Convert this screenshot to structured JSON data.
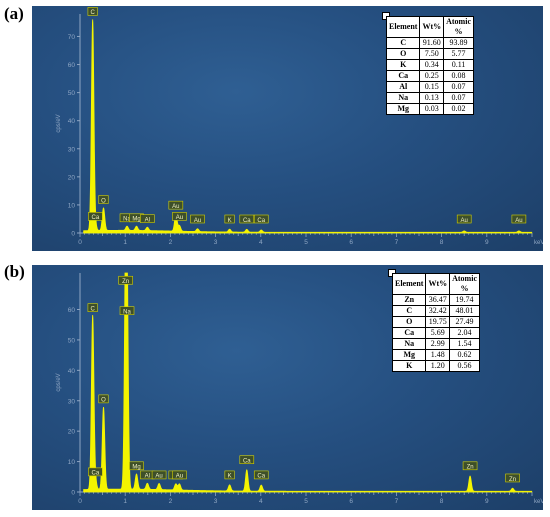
{
  "panel_labels": [
    "(a)",
    "(b)"
  ],
  "colors": {
    "spectrum": "#f4f400",
    "label_bg": "#3d4f2a",
    "label_border": "#d4d000",
    "axis": "#8fa6c3"
  },
  "chart_data": [
    {
      "type": "line",
      "panel": "(a)",
      "xlabel": "keV",
      "ylabel": "cps/eV",
      "xlim": [
        0,
        10
      ],
      "ylim": [
        0,
        78
      ],
      "x_ticks": [
        0,
        1,
        2,
        3,
        4,
        5,
        6,
        7,
        8,
        9
      ],
      "y_ticks": [
        0,
        10,
        20,
        30,
        40,
        50,
        60,
        70
      ],
      "peaks": [
        {
          "label": "C",
          "x": 0.28,
          "y": 75
        },
        {
          "label": "O",
          "x": 0.52,
          "y": 8
        },
        {
          "label": "Ca",
          "x": 0.34,
          "y": 2
        },
        {
          "label": "Na",
          "x": 1.04,
          "y": 1.5
        },
        {
          "label": "Mg",
          "x": 1.25,
          "y": 1.5
        },
        {
          "label": "Al",
          "x": 1.49,
          "y": 1.2
        },
        {
          "label": "Au",
          "x": 2.12,
          "y": 6
        },
        {
          "label": "Au",
          "x": 2.2,
          "y": 2
        },
        {
          "label": "Au",
          "x": 2.6,
          "y": 1
        },
        {
          "label": "K",
          "x": 3.31,
          "y": 1
        },
        {
          "label": "Ca",
          "x": 3.69,
          "y": 1
        },
        {
          "label": "Ca",
          "x": 4.01,
          "y": 0.8
        },
        {
          "label": "Au",
          "x": 8.5,
          "y": 0.5
        },
        {
          "label": "Au",
          "x": 9.71,
          "y": 0.5
        }
      ],
      "table": {
        "headers": [
          "Element",
          "Wt%",
          "Atomic %"
        ],
        "rows": [
          [
            "C",
            "91.60",
            "93.89"
          ],
          [
            "O",
            "7.50",
            "5.77"
          ],
          [
            "K",
            "0.34",
            "0.11"
          ],
          [
            "Ca",
            "0.25",
            "0.08"
          ],
          [
            "Al",
            "0.15",
            "0.07"
          ],
          [
            "Na",
            "0.13",
            "0.07"
          ],
          [
            "Mg",
            "0.03",
            "0.02"
          ]
        ]
      }
    },
    {
      "type": "line",
      "panel": "(b)",
      "xlabel": "keV",
      "ylabel": "cps/eV",
      "xlim": [
        0,
        10
      ],
      "ylim": [
        0,
        72
      ],
      "x_ticks": [
        0,
        1,
        2,
        3,
        4,
        5,
        6,
        7,
        8,
        9
      ],
      "y_ticks": [
        0,
        10,
        20,
        30,
        40,
        50,
        60
      ],
      "peaks": [
        {
          "label": "C",
          "x": 0.28,
          "y": 57
        },
        {
          "label": "Ca",
          "x": 0.34,
          "y": 3
        },
        {
          "label": "O",
          "x": 0.52,
          "y": 27
        },
        {
          "label": "Zn",
          "x": 1.01,
          "y": 66
        },
        {
          "label": "Na",
          "x": 1.04,
          "y": 56
        },
        {
          "label": "Mg",
          "x": 1.25,
          "y": 5
        },
        {
          "label": "Al",
          "x": 1.49,
          "y": 2
        },
        {
          "label": "Au",
          "x": 1.75,
          "y": 2
        },
        {
          "label": "Au",
          "x": 2.12,
          "y": 2
        },
        {
          "label": "Au",
          "x": 2.2,
          "y": 2
        },
        {
          "label": "K",
          "x": 3.31,
          "y": 2
        },
        {
          "label": "Ca",
          "x": 3.69,
          "y": 7
        },
        {
          "label": "Ca",
          "x": 4.01,
          "y": 2
        },
        {
          "label": "Zn",
          "x": 8.63,
          "y": 5
        },
        {
          "label": "Zn",
          "x": 9.57,
          "y": 1
        }
      ],
      "table": {
        "headers": [
          "Element",
          "Wt%",
          "Atomic %"
        ],
        "rows": [
          [
            "Zn",
            "36.47",
            "19.74"
          ],
          [
            "C",
            "32.42",
            "48.01"
          ],
          [
            "O",
            "19.75",
            "27.49"
          ],
          [
            "Ca",
            "5.69",
            "2.04"
          ],
          [
            "Na",
            "2.99",
            "1.54"
          ],
          [
            "Mg",
            "1.48",
            "0.62"
          ],
          [
            "K",
            "1.20",
            "0.56"
          ]
        ]
      }
    }
  ]
}
